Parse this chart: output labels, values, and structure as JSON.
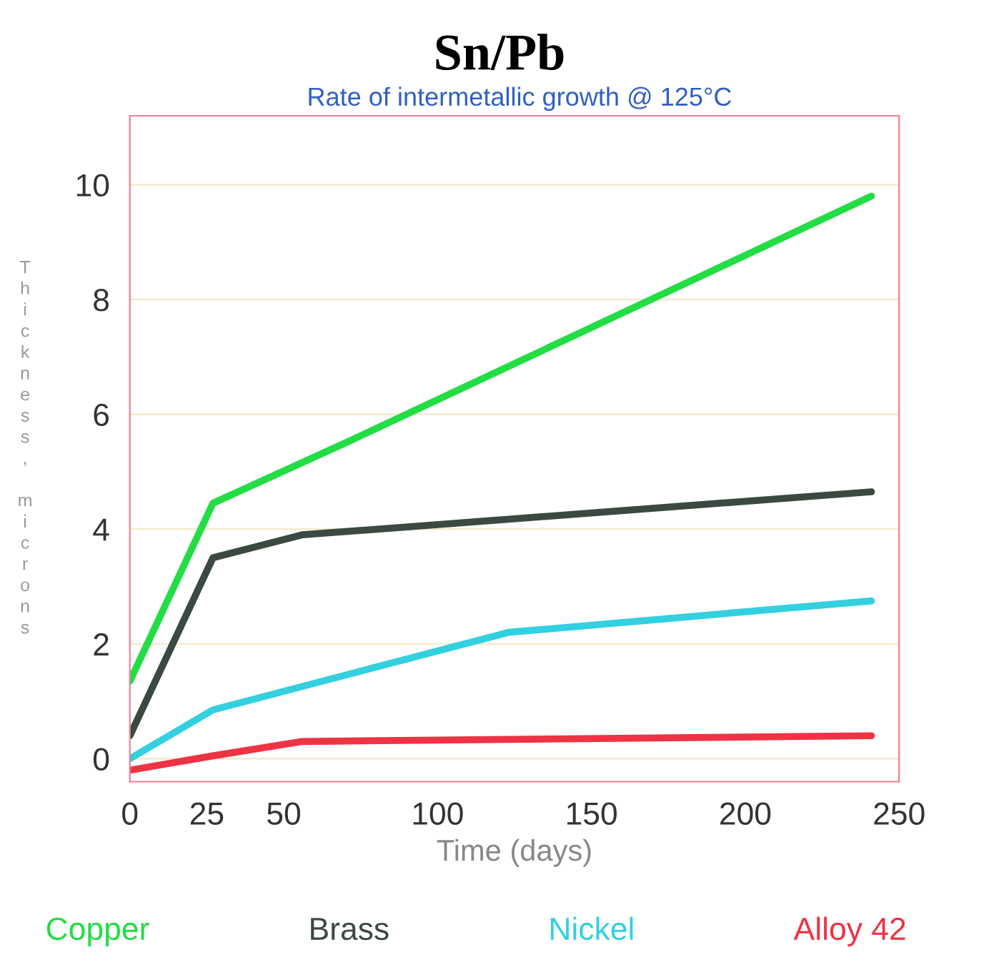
{
  "chart_data": {
    "type": "line",
    "title": "Sn/Pb",
    "subtitle": "Rate of intermetallic growth @ 125°C",
    "xlabel": "Time (days)",
    "ylabel": "Thickness, microns",
    "xlim": [
      0,
      250
    ],
    "ylim": [
      -0.4,
      11.2
    ],
    "xticks": [
      0,
      25,
      50,
      100,
      150,
      200,
      250
    ],
    "yticks": [
      0,
      2,
      4,
      6,
      8,
      10
    ],
    "grid": "y",
    "legend": "bottom",
    "series": [
      {
        "name": "Copper",
        "color": "#22dd44",
        "x": [
          0,
          27,
          72,
          241
        ],
        "values": [
          1.35,
          4.45,
          5.55,
          9.8
        ]
      },
      {
        "name": "Brass",
        "color": "#3a4a40",
        "x": [
          0,
          27,
          56,
          241
        ],
        "values": [
          0.4,
          3.5,
          3.9,
          4.65
        ]
      },
      {
        "name": "Nickel",
        "color": "#33d0e0",
        "x": [
          0,
          27,
          123,
          241
        ],
        "values": [
          0,
          0.85,
          2.2,
          2.75
        ]
      },
      {
        "name": "Alloy 42",
        "color": "#ee3344",
        "x": [
          0,
          27,
          56,
          241
        ],
        "values": [
          -0.2,
          0.05,
          0.3,
          0.4
        ]
      }
    ]
  }
}
